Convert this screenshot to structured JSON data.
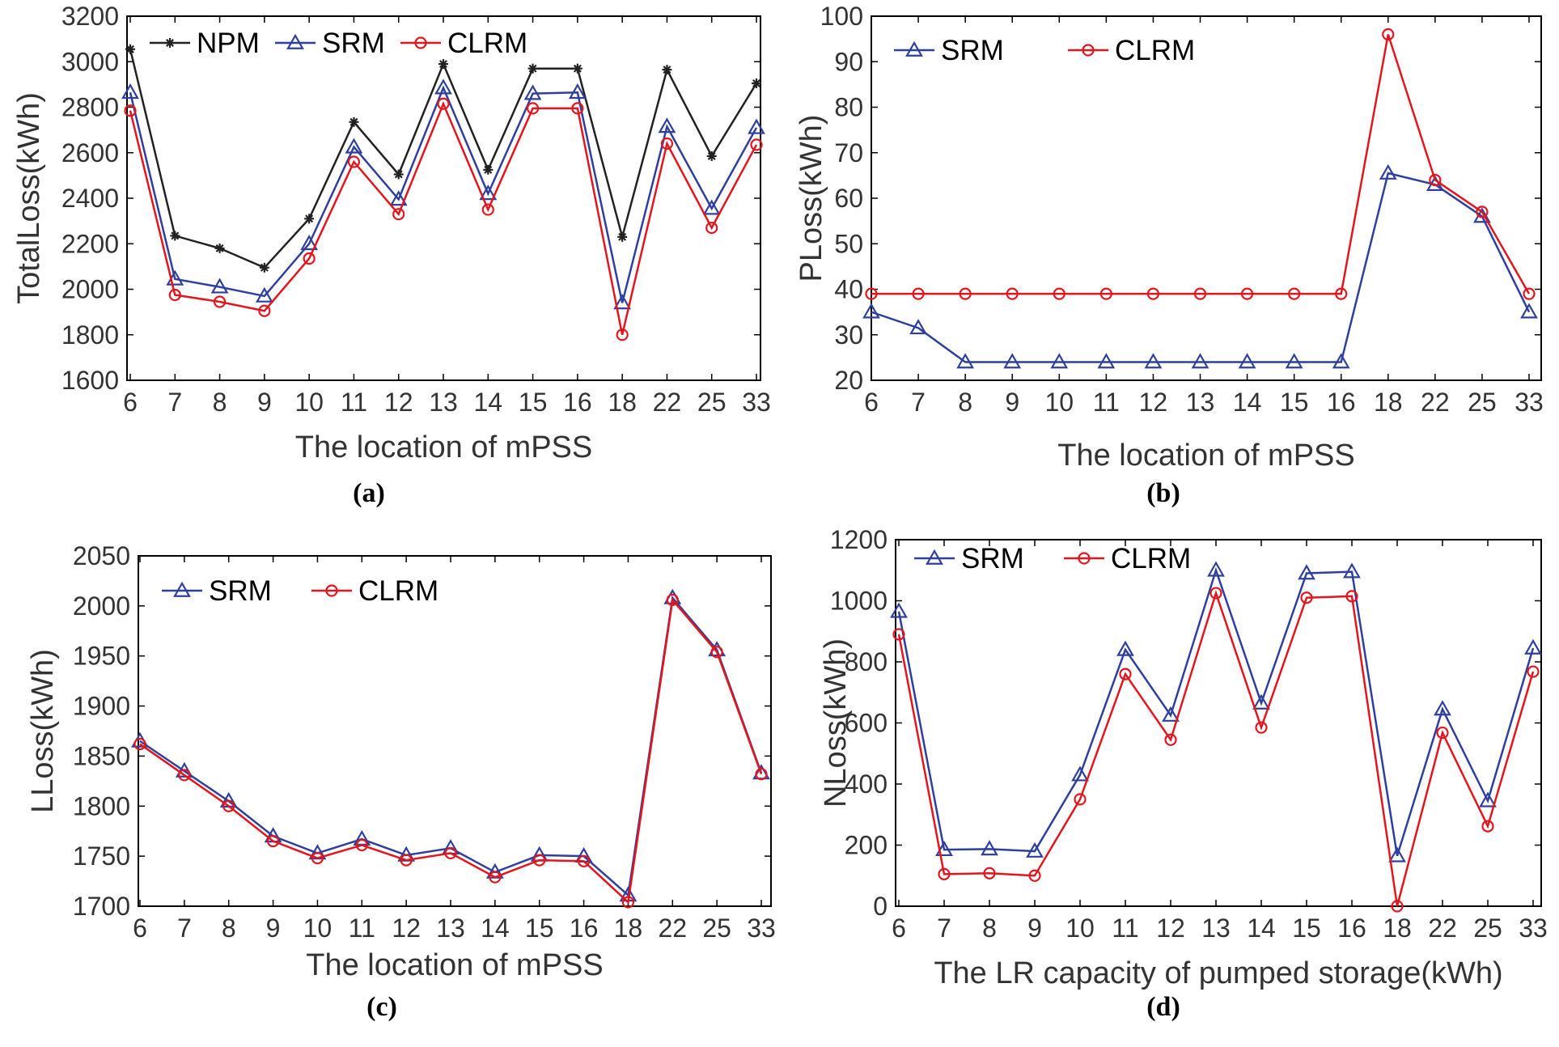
{
  "colors": {
    "NPM": "#222222",
    "SRM": "#2e3f9e",
    "CLRM": "#e3161e",
    "axis": "#000000",
    "text": "#333333"
  },
  "chart_data": [
    {
      "id": "a",
      "type": "line",
      "panel_label": "(a)",
      "xlabel": "The location of mPSS",
      "ylabel": "TotalLoss(kWh)",
      "categories": [
        "6",
        "7",
        "8",
        "9",
        "10",
        "11",
        "12",
        "13",
        "14",
        "15",
        "16",
        "18",
        "22",
        "25",
        "33"
      ],
      "ylim": [
        1600,
        3200
      ],
      "yticks": [
        1600,
        1800,
        2000,
        2200,
        2400,
        2600,
        2800,
        3000,
        3200
      ],
      "legend": "top",
      "series": [
        {
          "name": "NPM",
          "marker": "star",
          "values": [
            3055,
            2235,
            2180,
            2095,
            2310,
            2735,
            2505,
            2990,
            2525,
            2970,
            2970,
            2230,
            2965,
            2585,
            2905
          ]
        },
        {
          "name": "SRM",
          "marker": "triangle",
          "values": [
            2865,
            2045,
            2010,
            1970,
            2200,
            2625,
            2395,
            2885,
            2420,
            2860,
            2865,
            1940,
            2715,
            2355,
            2710
          ]
        },
        {
          "name": "CLRM",
          "marker": "circle",
          "values": [
            2785,
            1975,
            1945,
            1905,
            2135,
            2560,
            2330,
            2815,
            2350,
            2795,
            2795,
            1800,
            2640,
            2270,
            2635
          ]
        }
      ]
    },
    {
      "id": "b",
      "type": "line",
      "panel_label": "(b)",
      "xlabel": "The location of mPSS",
      "ylabel": "PLoss(kWh)",
      "categories": [
        "6",
        "7",
        "8",
        "9",
        "10",
        "11",
        "12",
        "13",
        "14",
        "15",
        "16",
        "18",
        "22",
        "25",
        "33"
      ],
      "ylim": [
        20,
        100
      ],
      "yticks": [
        20,
        30,
        40,
        50,
        60,
        70,
        80,
        90,
        100
      ],
      "legend": "top-left",
      "series": [
        {
          "name": "SRM",
          "marker": "triangle",
          "values": [
            35,
            31.5,
            24,
            24,
            24,
            24,
            24,
            24,
            24,
            24,
            24,
            65.5,
            63,
            56,
            35
          ]
        },
        {
          "name": "CLRM",
          "marker": "circle",
          "values": [
            39,
            39,
            39,
            39,
            39,
            39,
            39,
            39,
            39,
            39,
            39,
            96,
            64,
            57,
            39
          ]
        }
      ]
    },
    {
      "id": "c",
      "type": "line",
      "panel_label": "(c)",
      "xlabel": "The location of mPSS",
      "ylabel": "LLoss(kWh)",
      "categories": [
        "6",
        "7",
        "8",
        "9",
        "10",
        "11",
        "12",
        "13",
        "14",
        "15",
        "16",
        "18",
        "22",
        "25",
        "33"
      ],
      "ylim": [
        1700,
        2050
      ],
      "yticks": [
        1700,
        1750,
        1800,
        1850,
        1900,
        1950,
        2000,
        2050
      ],
      "legend": "top-left",
      "series": [
        {
          "name": "SRM",
          "marker": "triangle",
          "values": [
            1865,
            1835,
            1805,
            1770,
            1753,
            1767,
            1751,
            1758,
            1734,
            1751,
            1750,
            1711,
            2008,
            1956,
            1833
          ]
        },
        {
          "name": "CLRM",
          "marker": "circle",
          "values": [
            1862,
            1831,
            1800,
            1765,
            1748,
            1761,
            1746,
            1753,
            1729,
            1746,
            1745,
            1704,
            2006,
            1954,
            1832
          ]
        }
      ]
    },
    {
      "id": "d",
      "type": "line",
      "panel_label": "(d)",
      "xlabel": "The LR capacity of pumped storage(kWh)",
      "ylabel": "NLoss(kWh)",
      "categories": [
        "6",
        "7",
        "8",
        "9",
        "10",
        "11",
        "12",
        "13",
        "14",
        "15",
        "16",
        "18",
        "22",
        "25",
        "33"
      ],
      "ylim": [
        0,
        1200
      ],
      "yticks": [
        0,
        200,
        400,
        600,
        800,
        1000,
        1200
      ],
      "legend": "top-left",
      "series": [
        {
          "name": "SRM",
          "marker": "triangle",
          "values": [
            965,
            185,
            187,
            180,
            430,
            840,
            625,
            1100,
            665,
            1090,
            1095,
            165,
            645,
            345,
            845
          ]
        },
        {
          "name": "CLRM",
          "marker": "circle",
          "values": [
            890,
            105,
            108,
            100,
            350,
            760,
            545,
            1025,
            585,
            1010,
            1015,
            0,
            568,
            262,
            768
          ]
        }
      ]
    }
  ]
}
